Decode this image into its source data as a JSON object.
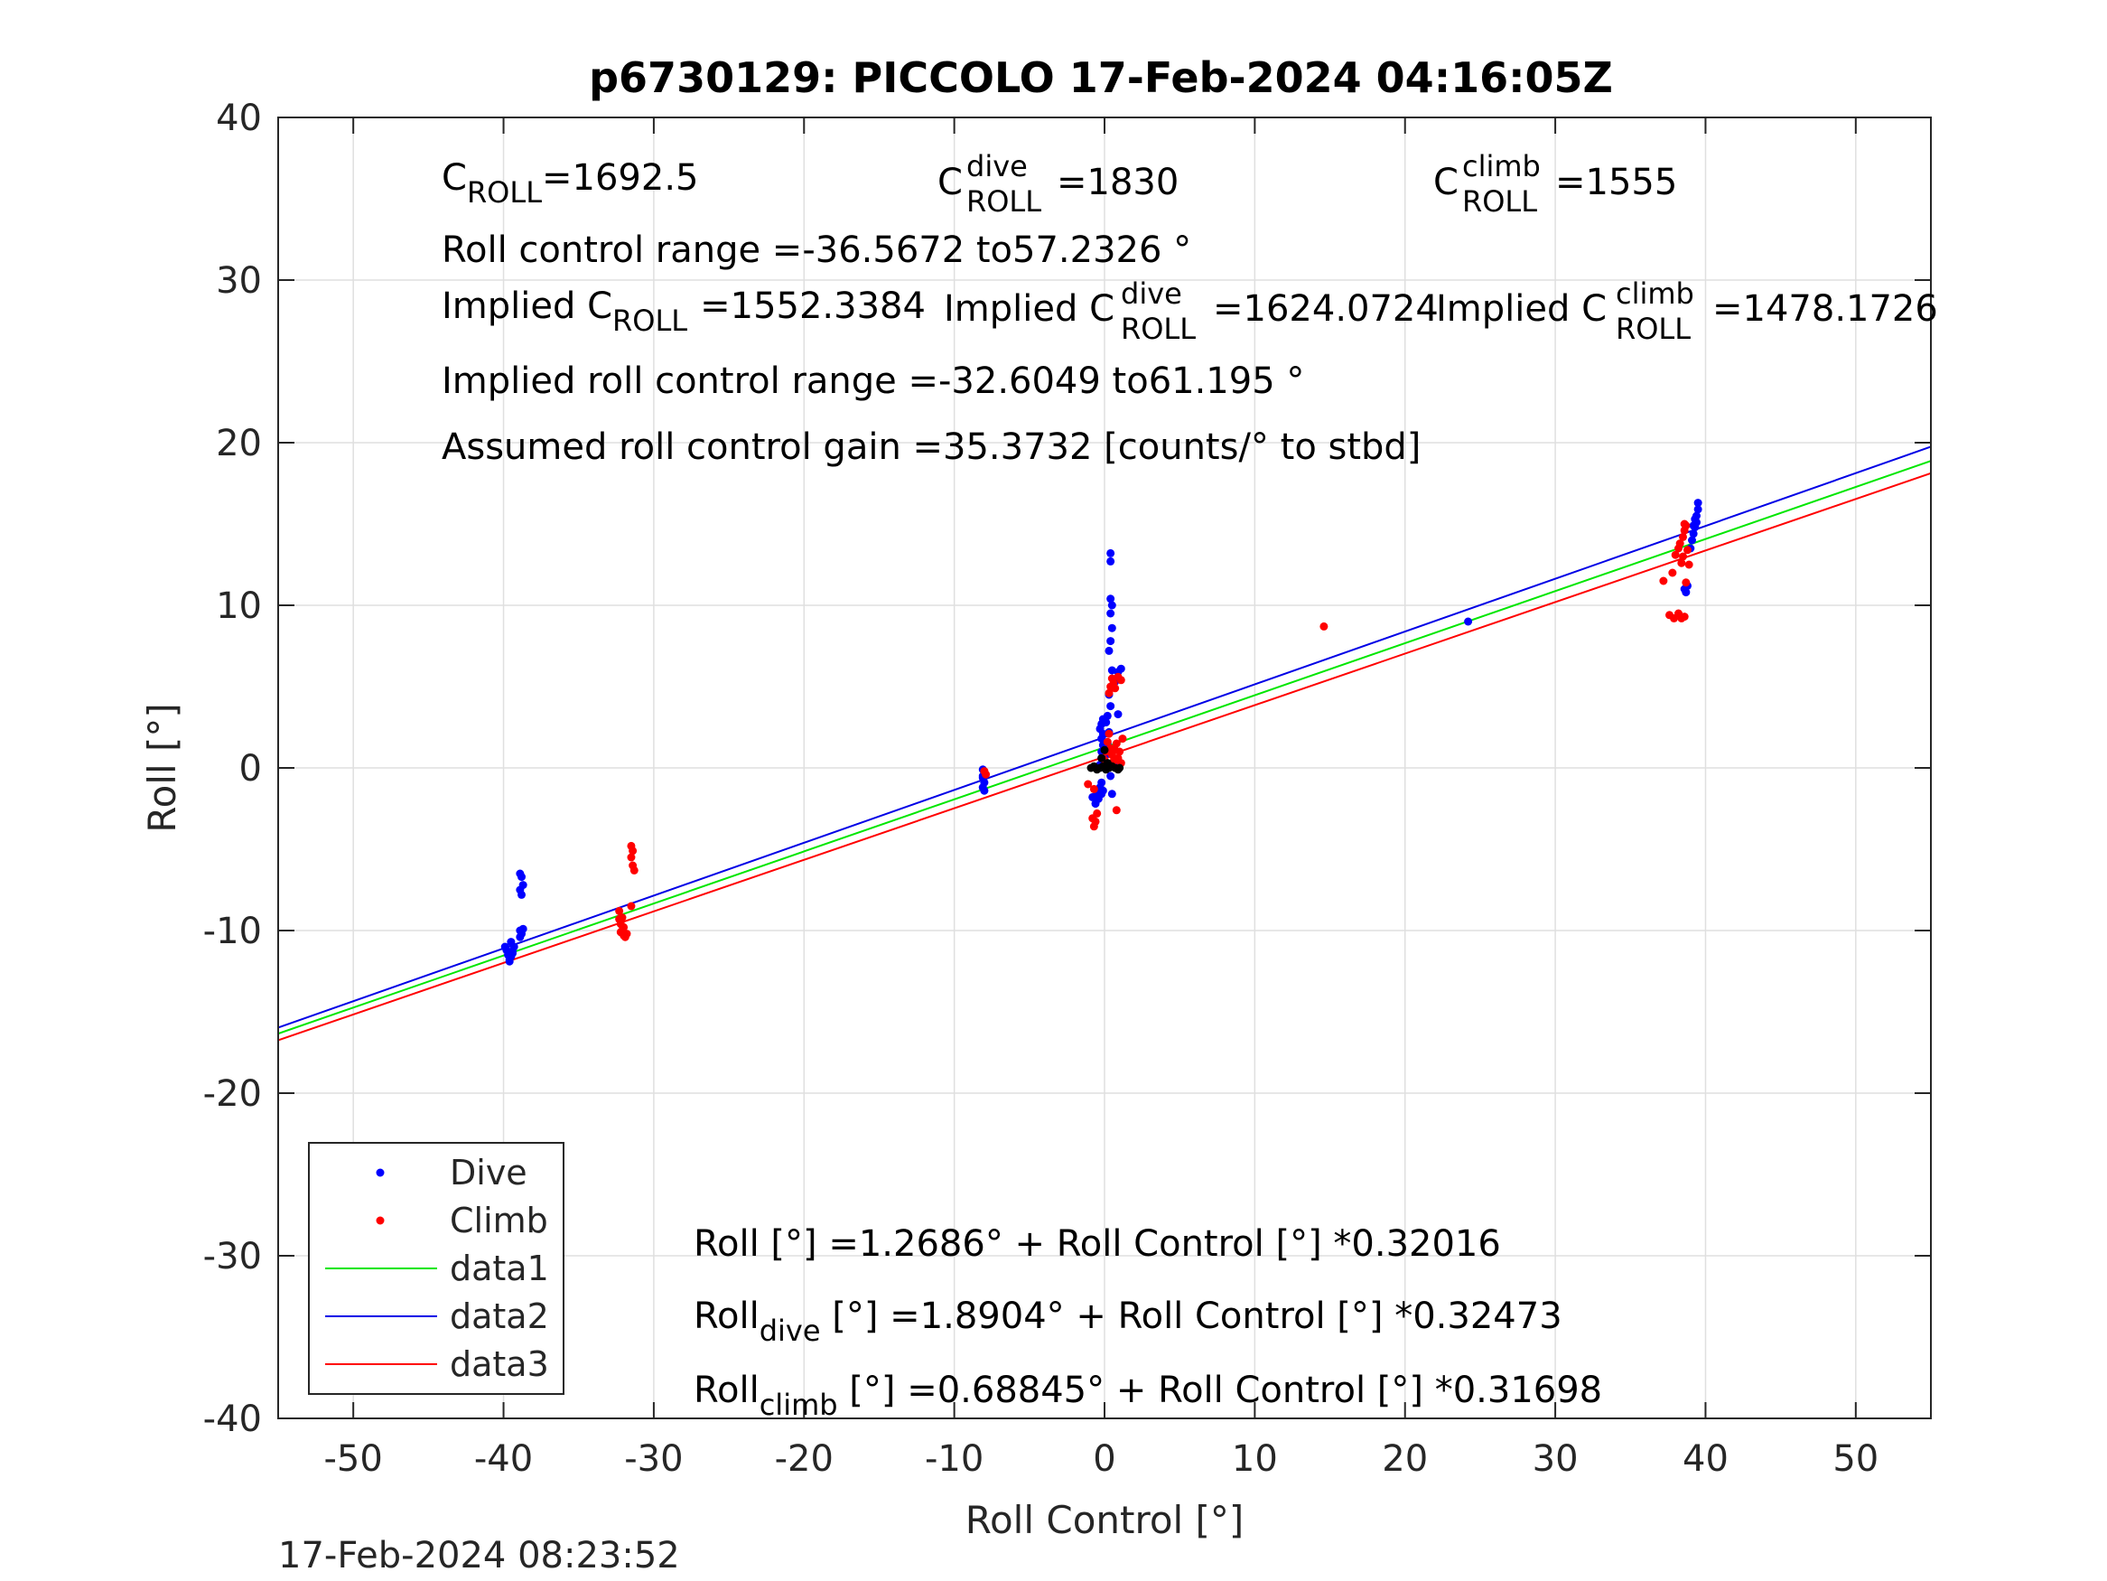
{
  "chart_data": {
    "type": "scatter",
    "title": "p6730129: PICCOLO 17-Feb-2024 04:16:05Z",
    "xlabel": "Roll Control [°]",
    "ylabel": "Roll [°]",
    "xlim": [
      -55,
      55
    ],
    "ylim": [
      -40,
      40
    ],
    "xticks": [
      -50,
      -40,
      -30,
      -20,
      -10,
      0,
      10,
      20,
      30,
      40,
      50
    ],
    "yticks": [
      -40,
      -30,
      -20,
      -10,
      0,
      10,
      20,
      30,
      40
    ],
    "x_tick_labels": [
      "-50",
      "-40",
      "-30",
      "-20",
      "-10",
      "0",
      "10",
      "20",
      "30",
      "40",
      "50"
    ],
    "y_tick_labels": [
      "-40",
      "-30",
      "-20",
      "-10",
      "0",
      "10",
      "20",
      "30",
      "40"
    ],
    "grid": true,
    "legend_position": "bottom-left",
    "timestamp": "17-Feb-2024 08:23:52",
    "colors": {
      "dive": "#0000ff",
      "climb": "#ff0000",
      "data1": "#00e600",
      "data2": "#0000e6",
      "data3": "#ff0000",
      "other": "#000000"
    },
    "legend": [
      {
        "label": "Dive",
        "kind": "marker",
        "color": "#0000ff"
      },
      {
        "label": "Climb",
        "kind": "marker",
        "color": "#ff0000"
      },
      {
        "label": "data1",
        "kind": "line",
        "color": "#00e600"
      },
      {
        "label": "data2",
        "kind": "line",
        "color": "#0000e6"
      },
      {
        "label": "data3",
        "kind": "line",
        "color": "#ff0000"
      }
    ],
    "lines": [
      {
        "name": "data1",
        "intercept": 1.2686,
        "slope": 0.32016,
        "color": "#00e600"
      },
      {
        "name": "data2",
        "intercept": 1.8904,
        "slope": 0.32473,
        "color": "#0000e6"
      },
      {
        "name": "data3",
        "intercept": 0.68845,
        "slope": 0.31698,
        "color": "#ff0000"
      }
    ],
    "annotations": {
      "c_roll": {
        "base": "C",
        "sub": "ROLL",
        "value": "=1692.5"
      },
      "c_roll_dive": {
        "base": "C",
        "sup": "dive",
        "sub": "ROLL",
        "value": "=1830"
      },
      "c_roll_climb": {
        "base": "C",
        "sup": "climb",
        "sub": "ROLL",
        "value": "=1555"
      },
      "roll_control_range": "Roll control range =-36.5672 to57.2326 °",
      "implied_c_roll": {
        "prefix": "Implied C",
        "sub": "ROLL",
        "value": "=1552.3384"
      },
      "implied_c_roll_dive": {
        "prefix": "Implied C",
        "sup": "dive",
        "sub": "ROLL",
        "value": "=1624.0724"
      },
      "implied_c_roll_climb": {
        "prefix": "Implied C",
        "sup": "climb",
        "sub": "ROLL",
        "value": "=1478.1726"
      },
      "implied_range": "Implied roll control range =-32.6049 to61.195 °",
      "gain": "Assumed roll control gain =35.3732 [counts/° to stbd]",
      "eq_all": "Roll [°] =1.2686° + Roll Control [°] *0.32016",
      "eq_dive": {
        "prefix": "Roll",
        "sub": "dive",
        "suffix": " [°] =1.8904° + Roll Control [°] *0.32473"
      },
      "eq_climb": {
        "prefix": "Roll",
        "sub": "climb",
        "suffix": " [°] =0.68845° + Roll Control [°] *0.31698"
      }
    },
    "series": [
      {
        "name": "Dive",
        "color": "#0000ff",
        "points": [
          [
            -39.9,
            -11.0
          ],
          [
            -39.8,
            -11.2
          ],
          [
            -39.7,
            -11.5
          ],
          [
            -39.6,
            -11.8
          ],
          [
            -39.5,
            -11.6
          ],
          [
            -39.4,
            -11.3
          ],
          [
            -39.3,
            -11.0
          ],
          [
            -39.5,
            -10.7
          ],
          [
            -39.6,
            -11.9
          ],
          [
            -39.4,
            -11.4
          ],
          [
            -38.9,
            -6.5
          ],
          [
            -38.8,
            -6.7
          ],
          [
            -38.9,
            -7.5
          ],
          [
            -38.8,
            -7.8
          ],
          [
            -38.7,
            -7.2
          ],
          [
            -38.9,
            -10.0
          ],
          [
            -38.8,
            -10.2
          ],
          [
            -38.7,
            -9.9
          ],
          [
            -38.9,
            -10.4
          ],
          [
            -8.1,
            -0.1
          ],
          [
            -8.0,
            -0.3
          ],
          [
            -8.1,
            -0.6
          ],
          [
            -8.0,
            -0.9
          ],
          [
            -8.1,
            -1.2
          ],
          [
            -8.0,
            -1.4
          ],
          [
            -8.1,
            -0.5
          ],
          [
            -0.8,
            -1.8
          ],
          [
            -0.6,
            -2.2
          ],
          [
            -0.5,
            -1.5
          ],
          [
            -0.4,
            -1.9
          ],
          [
            -0.3,
            -1.2
          ],
          [
            -0.2,
            -0.9
          ],
          [
            -0.2,
            -1.6
          ],
          [
            -0.1,
            -1.4
          ],
          [
            -0.3,
            0.2
          ],
          [
            -0.2,
            0.6
          ],
          [
            -0.2,
            1.0
          ],
          [
            -0.1,
            1.4
          ],
          [
            -0.2,
            1.8
          ],
          [
            -0.1,
            2.1
          ],
          [
            -0.3,
            2.4
          ],
          [
            -0.2,
            2.7
          ],
          [
            -0.1,
            3.0
          ],
          [
            0.0,
            0.4
          ],
          [
            0.1,
            0.8
          ],
          [
            0.2,
            1.5
          ],
          [
            0.3,
            2.2
          ],
          [
            0.1,
            2.8
          ],
          [
            0.2,
            3.2
          ],
          [
            0.4,
            3.8
          ],
          [
            0.3,
            4.5
          ],
          [
            0.5,
            5.0
          ],
          [
            0.7,
            5.3
          ],
          [
            0.9,
            5.9
          ],
          [
            1.1,
            6.1
          ],
          [
            0.5,
            6.0
          ],
          [
            0.3,
            7.2
          ],
          [
            0.4,
            7.8
          ],
          [
            0.5,
            8.6
          ],
          [
            0.4,
            9.5
          ],
          [
            0.5,
            10.0
          ],
          [
            0.4,
            10.4
          ],
          [
            0.4,
            12.7
          ],
          [
            0.4,
            13.2
          ],
          [
            0.9,
            3.3
          ],
          [
            0.8,
            0.2
          ],
          [
            0.4,
            -0.5
          ],
          [
            0.5,
            -1.6
          ],
          [
            0.7,
            0.3
          ],
          [
            24.2,
            9.0
          ],
          [
            38.6,
            11.0
          ],
          [
            38.7,
            10.8
          ],
          [
            38.8,
            11.2
          ],
          [
            39.0,
            13.5
          ],
          [
            39.1,
            14.0
          ],
          [
            39.2,
            14.4
          ],
          [
            39.3,
            14.8
          ],
          [
            39.4,
            15.1
          ],
          [
            39.4,
            15.5
          ],
          [
            39.5,
            15.9
          ],
          [
            39.5,
            16.3
          ],
          [
            39.3,
            15.3
          ],
          [
            39.2,
            14.9
          ]
        ]
      },
      {
        "name": "Climb",
        "color": "#ff0000",
        "points": [
          [
            -32.3,
            -8.8
          ],
          [
            -32.3,
            -9.3
          ],
          [
            -32.2,
            -9.6
          ],
          [
            -32.1,
            -10.0
          ],
          [
            -32.0,
            -10.3
          ],
          [
            -32.2,
            -10.1
          ],
          [
            -32.0,
            -9.8
          ],
          [
            -31.9,
            -10.4
          ],
          [
            -31.8,
            -10.2
          ],
          [
            -32.1,
            -9.2
          ],
          [
            -31.5,
            -4.8
          ],
          [
            -31.4,
            -5.1
          ],
          [
            -31.5,
            -5.5
          ],
          [
            -31.4,
            -6.0
          ],
          [
            -31.3,
            -6.3
          ],
          [
            -31.5,
            -8.5
          ],
          [
            -8.0,
            -0.2
          ],
          [
            -7.9,
            -0.4
          ],
          [
            -1.1,
            -1.0
          ],
          [
            -0.8,
            -3.1
          ],
          [
            -0.7,
            -3.6
          ],
          [
            -0.6,
            -3.3
          ],
          [
            -0.5,
            -2.8
          ],
          [
            -0.7,
            -1.3
          ],
          [
            0.0,
            0.5
          ],
          [
            0.1,
            1.0
          ],
          [
            0.2,
            1.6
          ],
          [
            0.3,
            2.1
          ],
          [
            0.4,
            1.2
          ],
          [
            0.5,
            0.8
          ],
          [
            0.6,
            0.4
          ],
          [
            0.7,
            1.1
          ],
          [
            0.8,
            1.5
          ],
          [
            0.9,
            0.6
          ],
          [
            1.0,
            1.0
          ],
          [
            1.1,
            0.3
          ],
          [
            1.2,
            1.8
          ],
          [
            0.3,
            4.6
          ],
          [
            0.4,
            5.0
          ],
          [
            0.5,
            5.5
          ],
          [
            0.6,
            5.2
          ],
          [
            0.7,
            4.9
          ],
          [
            0.9,
            5.6
          ],
          [
            1.1,
            5.4
          ],
          [
            0.8,
            -2.6
          ],
          [
            14.6,
            8.7
          ],
          [
            37.2,
            11.5
          ],
          [
            37.6,
            9.4
          ],
          [
            37.9,
            9.2
          ],
          [
            38.2,
            9.5
          ],
          [
            38.4,
            9.2
          ],
          [
            38.6,
            9.3
          ],
          [
            37.8,
            12.0
          ],
          [
            38.0,
            13.1
          ],
          [
            38.2,
            13.5
          ],
          [
            38.3,
            13.8
          ],
          [
            38.5,
            14.2
          ],
          [
            38.6,
            14.6
          ],
          [
            38.7,
            14.9
          ],
          [
            38.5,
            13.0
          ],
          [
            38.4,
            12.6
          ],
          [
            38.8,
            13.4
          ],
          [
            38.9,
            12.5
          ],
          [
            38.7,
            11.4
          ],
          [
            38.6,
            15.0
          ]
        ]
      },
      {
        "name": "Other",
        "color": "#000000",
        "points": [
          [
            -0.9,
            0.0
          ],
          [
            -0.7,
            0.1
          ],
          [
            -0.5,
            -0.1
          ],
          [
            -0.3,
            0.0
          ],
          [
            -0.1,
            0.1
          ],
          [
            0.1,
            -0.1
          ],
          [
            0.3,
            0.0
          ],
          [
            0.5,
            0.1
          ],
          [
            0.7,
            0.0
          ],
          [
            0.9,
            -0.1
          ],
          [
            1.0,
            0.0
          ],
          [
            -0.2,
            0.6
          ],
          [
            0.0,
            1.1
          ],
          [
            0.2,
            0.3
          ]
        ]
      }
    ]
  }
}
